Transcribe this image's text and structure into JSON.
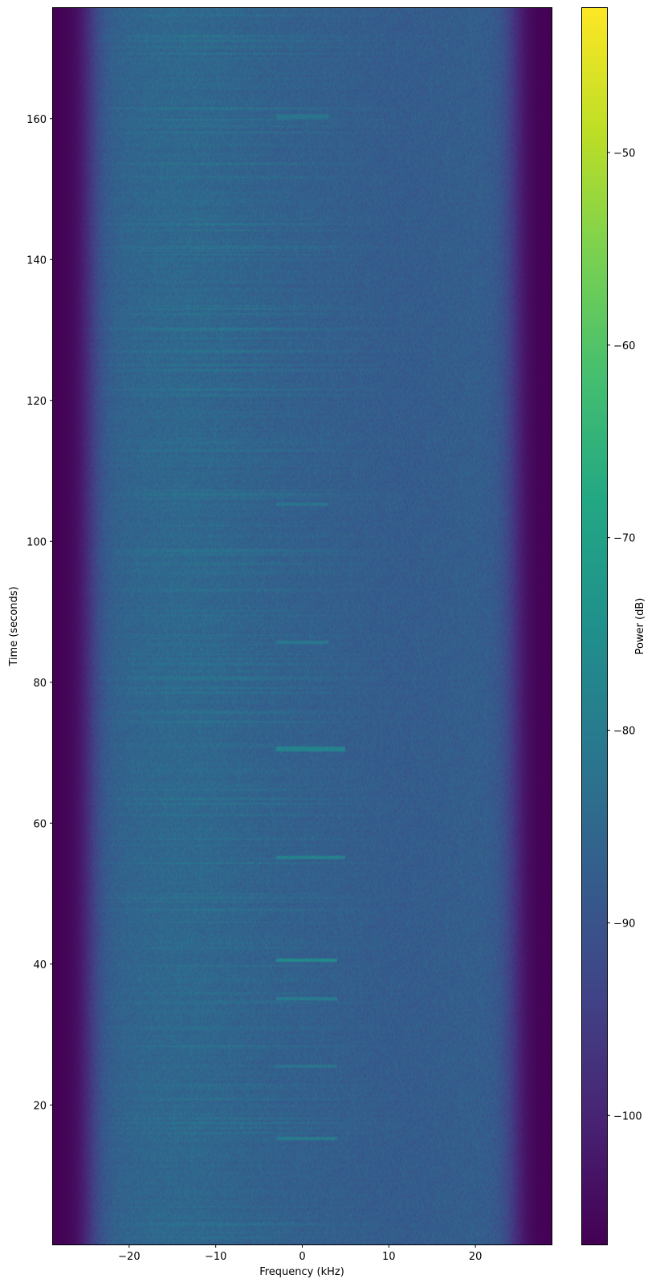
{
  "chart_data": {
    "type": "heatmap",
    "title": "",
    "xlabel": "Frequency (kHz)",
    "ylabel": "Time (seconds)",
    "xlim": [
      -28.8,
      28.8
    ],
    "ylim": [
      0.2,
      175.7
    ],
    "xticks": [
      -20,
      -10,
      0,
      10,
      20
    ],
    "xtick_labels": [
      "−20",
      "−10",
      "0",
      "10",
      "20"
    ],
    "yticks": [
      20,
      40,
      60,
      80,
      100,
      120,
      140,
      160
    ],
    "ytick_labels": [
      "20",
      "40",
      "60",
      "80",
      "100",
      "120",
      "140",
      "160"
    ],
    "colormap": "viridis",
    "colorbar": {
      "label": "Power (dB)",
      "clim": [
        -106.7,
        -42.5
      ],
      "ticks": [
        -50,
        -60,
        -70,
        -80,
        -90,
        -100
      ],
      "tick_labels": [
        "−50",
        "−60",
        "−70",
        "−80",
        "−90",
        "−100"
      ]
    },
    "noise_floor_db": -87,
    "edge_floor_db": -106.7,
    "passband_edge_khz": 26,
    "narrowband_events": [
      {
        "time": 15.2,
        "freq_range": [
          -3,
          4
        ],
        "level_db": -80
      },
      {
        "time": 25.5,
        "freq_range": [
          -3,
          4
        ],
        "level_db": -82
      },
      {
        "time": 35.1,
        "freq_range": [
          -3,
          4
        ],
        "level_db": -80
      },
      {
        "time": 40.5,
        "freq_range": [
          -3,
          4
        ],
        "level_db": -76
      },
      {
        "time": 55.2,
        "freq_range": [
          -3,
          5
        ],
        "level_db": -78
      },
      {
        "time": 70.5,
        "freq_range": [
          -3,
          5
        ],
        "level_db": -78
      },
      {
        "time": 85.6,
        "freq_range": [
          -3,
          3
        ],
        "level_db": -81
      },
      {
        "time": 105.2,
        "freq_range": [
          -3,
          3
        ],
        "level_db": -82
      },
      {
        "time": 160.3,
        "freq_range": [
          -3,
          3
        ],
        "level_db": -82
      }
    ],
    "grid": false
  }
}
